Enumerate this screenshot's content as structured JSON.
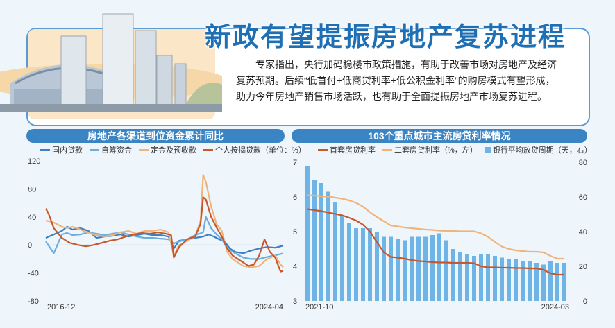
{
  "header": {
    "title": "新政有望提振房地产复苏进程",
    "intro": "专家指出，央行加码稳楼市政策措施，有助于改善市场对房地产及经济复苏预期。后续“低首付+低商贷利率+低公积金利率”的购房模式有望形成，助力今年房地产销售市场活跃，也有助于全面提振房地产市场复苏进程。"
  },
  "colors": {
    "blue_series": "#3d7fc4",
    "light_blue_series": "#6aaee0",
    "orange_series": "#f0b47a",
    "dark_orange_series": "#c8582a",
    "bars": "#6fb4e6",
    "title_bg": "#3b84c4"
  },
  "chart_data": [
    {
      "type": "line",
      "title": "房地产各渠道到位资金累计同比",
      "legend": [
        "国内贷款",
        "自筹资金",
        "定金及预收款",
        "个人按揭贷款（单位：%）"
      ],
      "yticks": [
        "120",
        "80",
        "40",
        "0",
        "-40",
        "-80"
      ],
      "ylim": [
        -80,
        120
      ],
      "xlabels": [
        "2016-12",
        "2024-04"
      ],
      "x_count": 90,
      "series": [
        {
          "name": "国内贷款",
          "color": "#3d7fc4",
          "anchors": [
            [
              0,
              10
            ],
            [
              3,
              15
            ],
            [
              6,
              20
            ],
            [
              8,
              26
            ],
            [
              10,
              22
            ],
            [
              13,
              24
            ],
            [
              16,
              20
            ],
            [
              19,
              10
            ],
            [
              22,
              12
            ],
            [
              25,
              13
            ],
            [
              28,
              15
            ],
            [
              31,
              12
            ],
            [
              34,
              14
            ],
            [
              37,
              16
            ],
            [
              40,
              14
            ],
            [
              43,
              14
            ],
            [
              46,
              12
            ],
            [
              48,
              -5
            ],
            [
              50,
              6
            ],
            [
              53,
              8
            ],
            [
              56,
              10
            ],
            [
              59,
              12
            ],
            [
              61,
              15
            ],
            [
              63,
              12
            ],
            [
              65,
              8
            ],
            [
              67,
              5
            ],
            [
              69,
              -5
            ],
            [
              71,
              -10
            ],
            [
              74,
              -12
            ],
            [
              77,
              -8
            ],
            [
              80,
              -5
            ],
            [
              83,
              -3
            ],
            [
              86,
              -4
            ],
            [
              88,
              -2
            ],
            [
              89,
              -1
            ]
          ]
        },
        {
          "name": "自筹资金",
          "color": "#6aaee0",
          "anchors": [
            [
              0,
              5
            ],
            [
              3,
              -12
            ],
            [
              6,
              15
            ],
            [
              8,
              17
            ],
            [
              10,
              14
            ],
            [
              13,
              15
            ],
            [
              16,
              18
            ],
            [
              19,
              16
            ],
            [
              22,
              14
            ],
            [
              25,
              16
            ],
            [
              28,
              18
            ],
            [
              31,
              15
            ],
            [
              34,
              12
            ],
            [
              37,
              10
            ],
            [
              40,
              10
            ],
            [
              43,
              9
            ],
            [
              46,
              8
            ],
            [
              48,
              2
            ],
            [
              50,
              5
            ],
            [
              53,
              8
            ],
            [
              56,
              14
            ],
            [
              59,
              18
            ],
            [
              60,
              40
            ],
            [
              62,
              24
            ],
            [
              64,
              15
            ],
            [
              66,
              8
            ],
            [
              68,
              -5
            ],
            [
              71,
              -12
            ],
            [
              74,
              -18
            ],
            [
              77,
              -20
            ],
            [
              80,
              -20
            ],
            [
              83,
              -17
            ],
            [
              86,
              -15
            ],
            [
              88,
              -13
            ],
            [
              89,
              -12
            ]
          ]
        },
        {
          "name": "定金及预收款",
          "color": "#f0b47a",
          "anchors": [
            [
              0,
              35
            ],
            [
              3,
              32
            ],
            [
              6,
              26
            ],
            [
              8,
              24
            ],
            [
              10,
              26
            ],
            [
              13,
              22
            ],
            [
              16,
              17
            ],
            [
              19,
              14
            ],
            [
              22,
              12
            ],
            [
              25,
              14
            ],
            [
              28,
              18
            ],
            [
              31,
              20
            ],
            [
              34,
              16
            ],
            [
              37,
              20
            ],
            [
              40,
              20
            ],
            [
              43,
              22
            ],
            [
              46,
              18
            ],
            [
              48,
              -15
            ],
            [
              50,
              0
            ],
            [
              53,
              6
            ],
            [
              56,
              12
            ],
            [
              58,
              35
            ],
            [
              59,
              100
            ],
            [
              60,
              90
            ],
            [
              62,
              55
            ],
            [
              64,
              30
            ],
            [
              66,
              20
            ],
            [
              68,
              -10
            ],
            [
              70,
              -20
            ],
            [
              72,
              -25
            ],
            [
              74,
              -30
            ],
            [
              77,
              -32
            ],
            [
              80,
              -30
            ],
            [
              83,
              -20
            ],
            [
              86,
              -15
            ],
            [
              88,
              -28
            ],
            [
              89,
              -32
            ]
          ]
        },
        {
          "name": "个人按揭贷款",
          "color": "#c8582a",
          "anchors": [
            [
              0,
              52
            ],
            [
              1,
              45
            ],
            [
              3,
              24
            ],
            [
              6,
              10
            ],
            [
              9,
              3
            ],
            [
              12,
              0
            ],
            [
              15,
              -2
            ],
            [
              18,
              0
            ],
            [
              21,
              3
            ],
            [
              24,
              6
            ],
            [
              27,
              8
            ],
            [
              30,
              12
            ],
            [
              33,
              15
            ],
            [
              36,
              17
            ],
            [
              39,
              16
            ],
            [
              42,
              18
            ],
            [
              45,
              16
            ],
            [
              47,
              14
            ],
            [
              48,
              -18
            ],
            [
              50,
              -3
            ],
            [
              53,
              8
            ],
            [
              56,
              12
            ],
            [
              58,
              30
            ],
            [
              59,
              68
            ],
            [
              60,
              65
            ],
            [
              62,
              40
            ],
            [
              64,
              25
            ],
            [
              66,
              12
            ],
            [
              68,
              -5
            ],
            [
              70,
              -15
            ],
            [
              72,
              -20
            ],
            [
              74,
              -25
            ],
            [
              76,
              -30
            ],
            [
              78,
              -28
            ],
            [
              80,
              -15
            ],
            [
              82,
              8
            ],
            [
              84,
              -10
            ],
            [
              86,
              -18
            ],
            [
              88,
              -38
            ],
            [
              89,
              -37
            ]
          ]
        }
      ]
    },
    {
      "type": "bar+line",
      "title": "103个重点城市主流房贷利率情况",
      "legend": [
        "首套房贷利率",
        "二套房贷利率（%，左）",
        "银行平均放贷周期（天，右）"
      ],
      "yticks_left": [
        "7",
        "6",
        "5",
        "4",
        "3"
      ],
      "yticks_right": [
        "80",
        "60",
        "40",
        "20",
        "0"
      ],
      "ylim_left": [
        3,
        7
      ],
      "ylim_right": [
        0,
        80
      ],
      "xlabels": [
        "2021-10",
        "2024-03"
      ],
      "bars": [
        78,
        70,
        68,
        63,
        57,
        49,
        45,
        42,
        42,
        42,
        40,
        37,
        37,
        36,
        35,
        37,
        37,
        37,
        38,
        39,
        35,
        30,
        28,
        27,
        26,
        27,
        27,
        26,
        25,
        24,
        24,
        23,
        23,
        22,
        21,
        23,
        22,
        22
      ],
      "series": [
        {
          "name": "首套房贷利率",
          "color": "#c8582a",
          "values": [
            5.65,
            5.62,
            5.59,
            5.55,
            5.51,
            5.47,
            5.4,
            5.32,
            5.2,
            5.0,
            4.7,
            4.4,
            4.27,
            4.25,
            4.22,
            4.18,
            4.15,
            4.14,
            4.12,
            4.11,
            4.11,
            4.1,
            4.1,
            4.1,
            4.09,
            4.0,
            3.97,
            3.97,
            3.96,
            3.96,
            3.95,
            3.95,
            3.94,
            3.94,
            3.9,
            3.8,
            3.76,
            3.76
          ]
        },
        {
          "name": "二套房贷利率",
          "color": "#f0b47a",
          "values": [
            6.05,
            6.04,
            6.02,
            6.01,
            5.98,
            5.95,
            5.9,
            5.83,
            5.72,
            5.56,
            5.42,
            5.3,
            5.18,
            5.15,
            5.12,
            5.1,
            5.08,
            5.06,
            5.05,
            5.03,
            5.02,
            5.02,
            5.01,
            5.01,
            5.01,
            4.95,
            4.85,
            4.7,
            4.57,
            4.5,
            4.46,
            4.44,
            4.42,
            4.42,
            4.4,
            4.3,
            4.22,
            4.22
          ]
        }
      ]
    }
  ]
}
